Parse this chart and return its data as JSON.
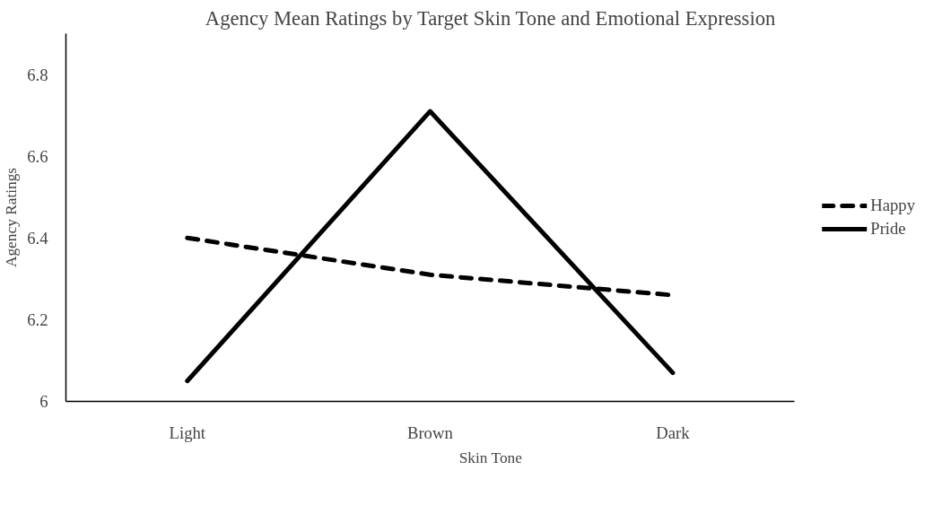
{
  "chart_data": {
    "type": "line",
    "title": "Agency Mean Ratings by Target Skin Tone and Emotional Expression",
    "xlabel": "Skin Tone",
    "ylabel": "Agency Ratings",
    "categories": [
      "Light",
      "Brown",
      "Dark"
    ],
    "series": [
      {
        "name": "Happy",
        "color": "#000000",
        "line_style": "dashed",
        "values": [
          6.4,
          6.31,
          6.26
        ]
      },
      {
        "name": "Pride",
        "color": "#000000",
        "line_style": "solid",
        "values": [
          6.05,
          6.71,
          6.07
        ]
      }
    ],
    "ylim": [
      6,
      6.9
    ],
    "yticks": [
      {
        "value": 6,
        "label": "6"
      },
      6.2,
      6.4,
      6.6,
      6.8
    ],
    "grid": false,
    "legend": "right",
    "marker": "none"
  }
}
